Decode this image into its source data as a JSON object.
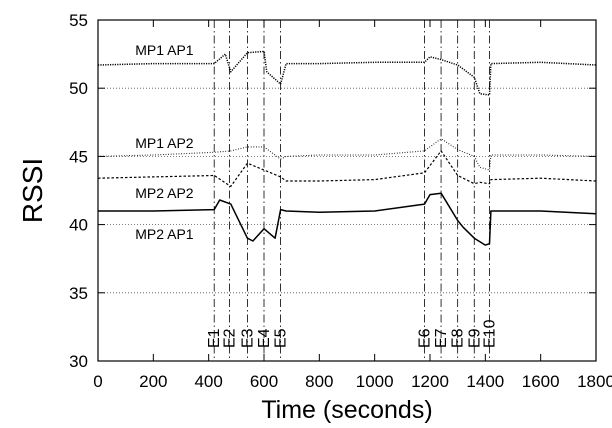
{
  "chart_data": {
    "type": "line",
    "xlabel": "Time (seconds)",
    "ylabel": "RSSI",
    "xlim": [
      0,
      1800
    ],
    "ylim": [
      30,
      55
    ],
    "x_ticks": [
      0,
      200,
      400,
      600,
      800,
      1000,
      1200,
      1400,
      1600,
      1800
    ],
    "y_ticks": [
      30,
      35,
      40,
      45,
      50,
      55
    ],
    "grid": "horizontal dotted lines at y ticks",
    "events": [
      {
        "label": "E1",
        "x": 420
      },
      {
        "label": "E2",
        "x": 475
      },
      {
        "label": "E3",
        "x": 540
      },
      {
        "label": "E4",
        "x": 600
      },
      {
        "label": "E5",
        "x": 660
      },
      {
        "label": "E6",
        "x": 1180
      },
      {
        "label": "E7",
        "x": 1240
      },
      {
        "label": "E8",
        "x": 1300
      },
      {
        "label": "E9",
        "x": 1360
      },
      {
        "label": "E10",
        "x": 1415
      }
    ],
    "series": [
      {
        "name": "MP1 AP1",
        "style": "dotted-dense",
        "x": [
          0,
          200,
          420,
          460,
          480,
          540,
          600,
          610,
          660,
          680,
          800,
          1000,
          1180,
          1200,
          1240,
          1300,
          1360,
          1380,
          1415,
          1420,
          1600,
          1800
        ],
        "y": [
          51.7,
          51.8,
          51.8,
          52.5,
          51.2,
          52.6,
          52.7,
          51.2,
          50.3,
          51.8,
          51.8,
          51.9,
          51.9,
          52.3,
          52.1,
          51.7,
          50.8,
          49.6,
          49.5,
          51.8,
          51.9,
          51.7
        ]
      },
      {
        "name": "MP1 AP2",
        "style": "dotted-fine",
        "x": [
          0,
          200,
          420,
          480,
          540,
          600,
          660,
          680,
          800,
          1000,
          1180,
          1240,
          1300,
          1360,
          1380,
          1415,
          1420,
          1600,
          1800
        ],
        "y": [
          45.0,
          45.1,
          45.3,
          45.4,
          45.7,
          45.7,
          44.8,
          45.0,
          45.1,
          45.1,
          45.4,
          46.3,
          45.5,
          45.0,
          44.2,
          44.0,
          45.1,
          45.1,
          45.0
        ]
      },
      {
        "name": "MP2 AP2",
        "style": "dotted-short",
        "x": [
          0,
          200,
          420,
          480,
          540,
          600,
          660,
          680,
          800,
          1000,
          1180,
          1240,
          1300,
          1360,
          1380,
          1415,
          1420,
          1600,
          1800
        ],
        "y": [
          43.4,
          43.5,
          43.6,
          42.8,
          44.5,
          44.0,
          43.5,
          43.2,
          43.2,
          43.3,
          43.8,
          45.4,
          43.6,
          43.0,
          43.1,
          43.0,
          43.3,
          43.4,
          43.2
        ]
      },
      {
        "name": "MP2 AP1",
        "style": "solid",
        "x": [
          0,
          200,
          420,
          440,
          480,
          540,
          560,
          600,
          640,
          660,
          680,
          800,
          1000,
          1180,
          1200,
          1240,
          1300,
          1320,
          1360,
          1400,
          1415,
          1420,
          1600,
          1800
        ],
        "y": [
          41.0,
          41.0,
          41.1,
          41.8,
          41.5,
          39.0,
          38.8,
          39.7,
          39.0,
          41.1,
          41.0,
          40.9,
          41.0,
          41.5,
          42.2,
          42.3,
          40.3,
          39.8,
          39.0,
          38.5,
          38.6,
          41.0,
          41.0,
          40.8
        ]
      }
    ],
    "series_labels": [
      {
        "text": "MP1 AP1",
        "x": 240,
        "y": 52.8
      },
      {
        "text": "MP1 AP2",
        "x": 240,
        "y": 46.0
      },
      {
        "text": "MP2 AP2",
        "x": 240,
        "y": 42.3
      },
      {
        "text": "MP2 AP1",
        "x": 240,
        "y": 39.3
      }
    ]
  }
}
